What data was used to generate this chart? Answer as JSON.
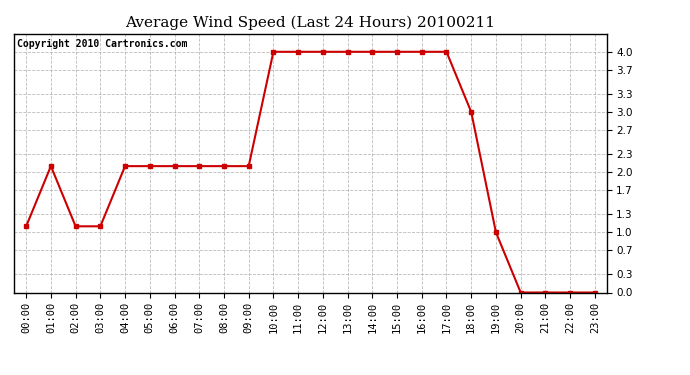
{
  "title": "Average Wind Speed (Last 24 Hours) 20100211",
  "copyright_text": "Copyright 2010 Cartronics.com",
  "hours": [
    0,
    1,
    2,
    3,
    4,
    5,
    6,
    7,
    8,
    9,
    10,
    11,
    12,
    13,
    14,
    15,
    16,
    17,
    18,
    19,
    20,
    21,
    22,
    23
  ],
  "values": [
    1.1,
    2.1,
    1.1,
    1.1,
    2.1,
    2.1,
    2.1,
    2.1,
    2.1,
    2.1,
    4.0,
    4.0,
    4.0,
    4.0,
    4.0,
    4.0,
    4.0,
    4.0,
    3.0,
    1.0,
    0.0,
    0.0,
    0.0,
    0.0
  ],
  "line_color": "#cc0000",
  "marker": "s",
  "marker_size": 3,
  "ylim": [
    0,
    4.3
  ],
  "yticks": [
    0.0,
    0.3,
    0.7,
    1.0,
    1.3,
    1.7,
    2.0,
    2.3,
    2.7,
    3.0,
    3.3,
    3.7,
    4.0
  ],
  "bg_color": "#ffffff",
  "grid_color": "#aaaaaa",
  "title_fontsize": 11,
  "copyright_fontsize": 7,
  "tick_fontsize": 7.5
}
